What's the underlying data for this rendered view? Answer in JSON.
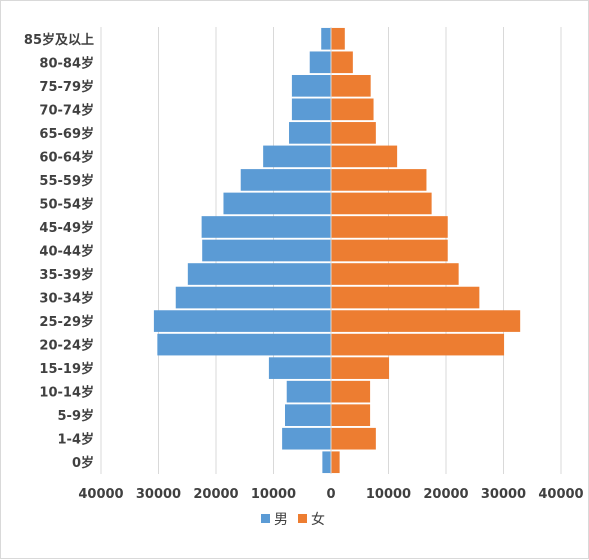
{
  "chart_data": {
    "type": "bar",
    "orientation": "horizontal",
    "diverging": true,
    "categories": [
      "0岁",
      "1-4岁",
      "5-9岁",
      "10-14岁",
      "15-19岁",
      "20-24岁",
      "25-29岁",
      "30-34岁",
      "35-39岁",
      "40-44岁",
      "45-49岁",
      "50-54岁",
      "55-59岁",
      "60-64岁",
      "65-69岁",
      "70-74岁",
      "75-79岁",
      "80-84岁",
      "85岁及以上"
    ],
    "series": [
      {
        "name": "男",
        "color": "#5b9bd5",
        "side": "left",
        "values": [
          1500,
          8500,
          8000,
          7700,
          10800,
          30200,
          30800,
          27000,
          24900,
          22400,
          22500,
          18700,
          15700,
          11800,
          7300,
          6800,
          6800,
          3700,
          1700
        ]
      },
      {
        "name": "女",
        "color": "#ed7d31",
        "side": "right",
        "values": [
          1500,
          7800,
          6800,
          6800,
          10100,
          30100,
          32900,
          25800,
          22200,
          20300,
          20300,
          17500,
          16600,
          11500,
          7800,
          7400,
          6900,
          3800,
          2400
        ]
      }
    ],
    "x_ticks": [
      "40000",
      "30000",
      "20000",
      "10000",
      "0",
      "10000",
      "20000",
      "30000",
      "40000"
    ],
    "xlim": [
      -40000,
      40000
    ],
    "grid": "vertical",
    "legend_position": "bottom"
  }
}
